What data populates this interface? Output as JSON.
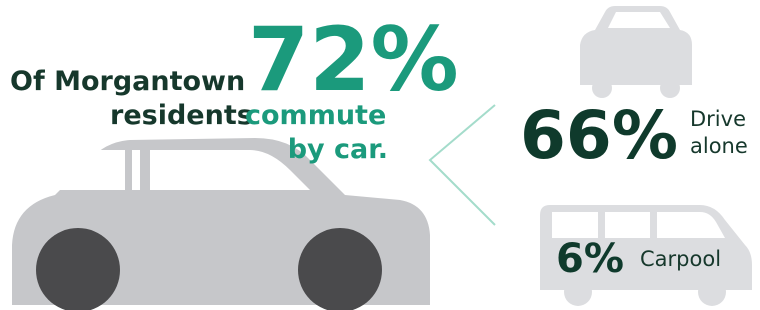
{
  "headline": {
    "line1": "Of Morgantown",
    "percent": "72%",
    "line2_dark": "residents",
    "line2_teal": "commute",
    "line3": "by car."
  },
  "drive_alone": {
    "percent": "66%",
    "label_line1": "Drive",
    "label_line2": "alone"
  },
  "carpool": {
    "percent": "6%",
    "label": "Carpool"
  }
}
